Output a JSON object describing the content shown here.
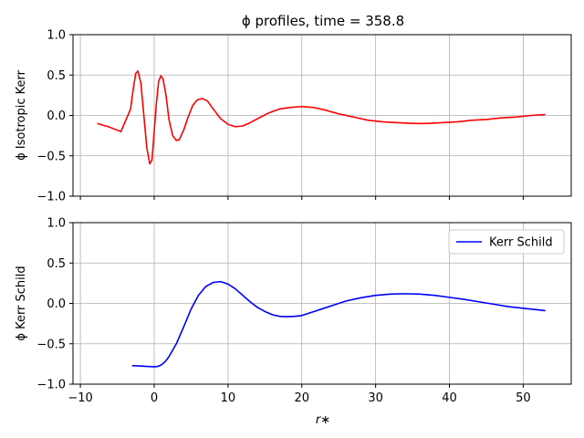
{
  "chart_data": {
    "title": "ϕ profiles, time = 358.8",
    "xlabel": "r∗",
    "xlim": [
      -11,
      56.5
    ],
    "xticks": [
      -10,
      0,
      10,
      20,
      30,
      40,
      50
    ],
    "xtick_labels": [
      "−10",
      "0",
      "10",
      "20",
      "30",
      "40",
      "50"
    ],
    "yticks": [
      -1.0,
      -0.5,
      0.0,
      0.5,
      1.0
    ],
    "ytick_labels": [
      "−1.0",
      "−0.5",
      "0.0",
      "0.5",
      "1.0"
    ],
    "grid": true,
    "panels": [
      {
        "type": "line",
        "ylabel": "ϕ Isotropic Kerr",
        "ylim": [
          -1.0,
          1.0
        ],
        "show_xtick_labels": false,
        "legend": false,
        "series": [
          {
            "color": "#ff0000",
            "x": [
              -7.7,
              -6.2,
              -4.5,
              -3.2,
              -2.8,
              -2.5,
              -2.2,
              -1.8,
              -1.4,
              -1.0,
              -0.6,
              -0.3,
              0.0,
              0.3,
              0.6,
              0.9,
              1.2,
              1.6,
              2.0,
              2.5,
              3.0,
              3.4,
              4.0,
              4.6,
              5.2,
              5.8,
              6.5,
              7.2,
              8.0,
              9.0,
              10.0,
              11.0,
              12.0,
              13.0,
              14.0,
              15.5,
              17.0,
              18.5,
              20.0,
              21.5,
              23.0,
              25.0,
              27.0,
              29.0,
              31.0,
              33.0,
              35.0,
              37.0,
              39.0,
              41.0,
              43.0,
              45.0,
              47.0,
              49.0,
              51.0,
              53.0
            ],
            "y": [
              -0.1,
              -0.14,
              -0.2,
              0.08,
              0.35,
              0.52,
              0.55,
              0.4,
              0.0,
              -0.4,
              -0.6,
              -0.55,
              -0.2,
              0.15,
              0.42,
              0.49,
              0.45,
              0.25,
              -0.05,
              -0.25,
              -0.31,
              -0.3,
              -0.18,
              -0.02,
              0.12,
              0.19,
              0.21,
              0.18,
              0.08,
              -0.04,
              -0.11,
              -0.14,
              -0.13,
              -0.09,
              -0.04,
              0.03,
              0.08,
              0.1,
              0.11,
              0.1,
              0.07,
              0.02,
              -0.02,
              -0.06,
              -0.08,
              -0.09,
              -0.1,
              -0.1,
              -0.09,
              -0.08,
              -0.06,
              -0.05,
              -0.03,
              -0.02,
              0.0,
              0.01
            ]
          }
        ]
      },
      {
        "type": "line",
        "ylabel": "ϕ Kerr Schild",
        "ylim": [
          -1.0,
          1.0
        ],
        "show_xtick_labels": true,
        "legend": true,
        "legend_position": "top-right",
        "series": [
          {
            "name": "Kerr Schild",
            "color": "#0000ff",
            "x": [
              -3.0,
              -2.0,
              -1.0,
              0.0,
              0.5,
              1.0,
              1.5,
              2.0,
              3.0,
              4.0,
              5.0,
              6.0,
              7.0,
              8.0,
              9.0,
              10.0,
              11.0,
              12.0,
              13.0,
              14.0,
              15.0,
              16.0,
              17.0,
              18.0,
              19.0,
              20.0,
              21.0,
              22.0,
              23.0,
              24.0,
              25.0,
              26.0,
              28.0,
              30.0,
              32.0,
              34.0,
              36.0,
              38.0,
              40.0,
              42.0,
              44.0,
              46.0,
              48.0,
              50.0,
              53.0
            ],
            "y": [
              -0.77,
              -0.775,
              -0.78,
              -0.785,
              -0.78,
              -0.76,
              -0.72,
              -0.66,
              -0.5,
              -0.29,
              -0.07,
              0.1,
              0.21,
              0.26,
              0.27,
              0.24,
              0.18,
              0.1,
              0.02,
              -0.05,
              -0.1,
              -0.14,
              -0.16,
              -0.165,
              -0.16,
              -0.15,
              -0.12,
              -0.09,
              -0.06,
              -0.03,
              0.0,
              0.03,
              0.07,
              0.1,
              0.115,
              0.12,
              0.115,
              0.1,
              0.075,
              0.05,
              0.02,
              -0.01,
              -0.04,
              -0.06,
              -0.09
            ]
          }
        ]
      }
    ]
  }
}
